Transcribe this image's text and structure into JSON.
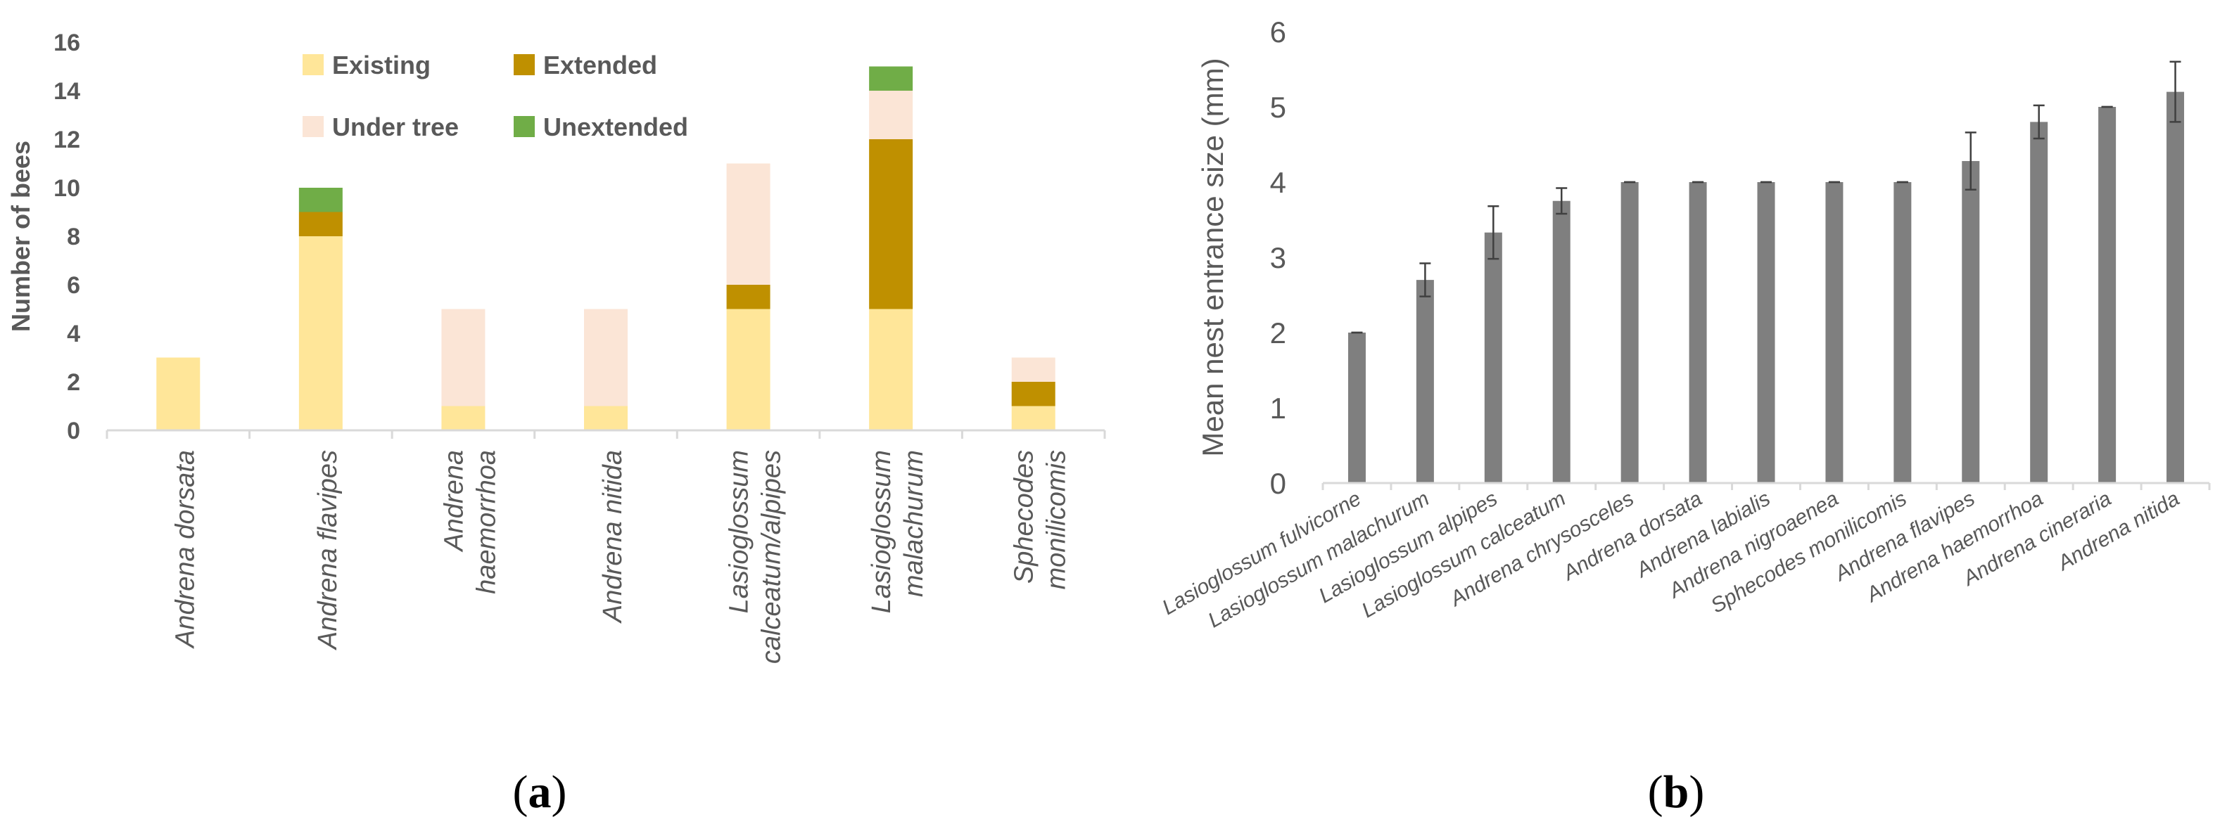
{
  "chart_data": [
    {
      "type": "bar",
      "stacked": true,
      "panel_label": "(a)",
      "panel_letter": "a",
      "ylabel": "Number of bees",
      "xlabel": "",
      "ylim": [
        0,
        16
      ],
      "yticks": [
        "0",
        "2",
        "4",
        "6",
        "8",
        "10",
        "12",
        "14",
        "16"
      ],
      "grid": false,
      "legend_position": "top-center",
      "categories": [
        [
          "Andrena dorsata"
        ],
        [
          "Andrena flavipes"
        ],
        [
          "Andrena",
          "haemorrhoa"
        ],
        [
          "Andrena nitida"
        ],
        [
          "Lasioglossum",
          "calceatum/alpipes"
        ],
        [
          "Lasioglossum",
          "malachurum"
        ],
        [
          "Sphecodes",
          "monilicomis"
        ]
      ],
      "series": [
        {
          "name": "Existing",
          "color": "#ffe699",
          "values": [
            3,
            8,
            1,
            1,
            5,
            5,
            1
          ]
        },
        {
          "name": "Extended",
          "color": "#bf9000",
          "values": [
            0,
            1,
            0,
            0,
            1,
            7,
            1
          ]
        },
        {
          "name": "Under tree",
          "color": "#fbe5d6",
          "values": [
            0,
            0,
            4,
            4,
            5,
            2,
            1
          ]
        },
        {
          "name": "Unextended",
          "color": "#70ad47",
          "values": [
            0,
            1,
            0,
            0,
            0,
            1,
            0
          ]
        }
      ]
    },
    {
      "type": "bar",
      "panel_label": "(b)",
      "panel_letter": "b",
      "ylabel": "Mean nest entrance size (mm)",
      "xlabel": "",
      "ylim": [
        0,
        6
      ],
      "yticks": [
        "0",
        "1",
        "2",
        "3",
        "4",
        "5",
        "6"
      ],
      "grid": false,
      "bar_color": "#7f7f7f",
      "categories": [
        "Lasioglossum fulvicorne",
        "Lasioglossum malachurum",
        "Lasioglossum alpipes",
        "Lasioglossum calceatum",
        "Andrena chrysosceles",
        "Andrena dorsata",
        "Andrena labialis",
        "Andrena nigroaenea",
        "Sphecodes monilicomis",
        "Andrena flavipes",
        "Andrena haemorrhoa",
        "Andrena cineraria",
        "Andrena nitida"
      ],
      "values": [
        2.0,
        2.7,
        3.33,
        3.75,
        4.0,
        4.0,
        4.0,
        4.0,
        4.0,
        4.28,
        4.8,
        5.0,
        5.2
      ],
      "errors": [
        0,
        0.22,
        0.35,
        0.17,
        0,
        0,
        0,
        0,
        0,
        0.38,
        0.22,
        0,
        0.4
      ]
    }
  ]
}
